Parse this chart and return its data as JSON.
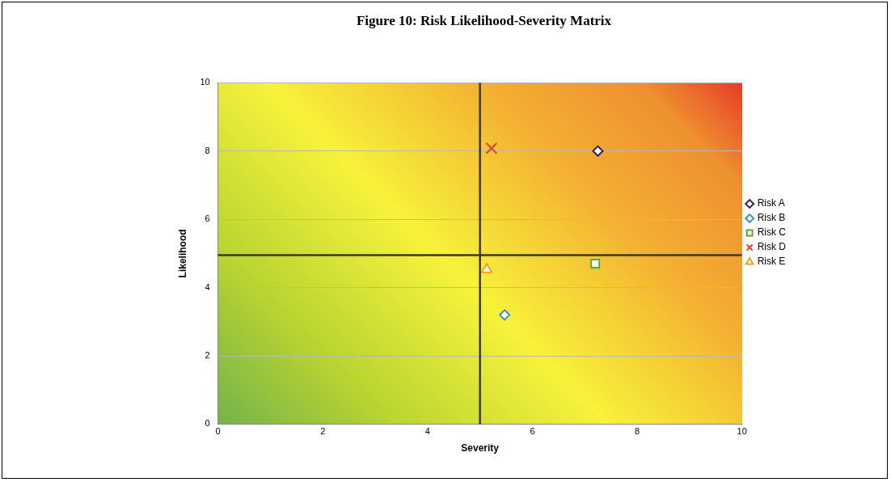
{
  "chart_data": {
    "type": "scatter",
    "title": "Figure 10: Risk Likelihood-Severity Matrix",
    "xlabel": "Severity",
    "ylabel": "Likelihood",
    "xlim": [
      0,
      10
    ],
    "xticks": [
      0,
      2,
      4,
      6,
      8,
      10
    ],
    "ylim": [
      0,
      10
    ],
    "yticks": [
      0,
      2,
      4,
      6,
      8,
      10
    ],
    "grid": "y",
    "legend": "right",
    "ref_lines": [
      {
        "axis": "x",
        "value": 5,
        "color": "#3a3a2a"
      },
      {
        "axis": "y",
        "value": 4.95,
        "color": "#3a3a2a"
      }
    ],
    "series": [
      {
        "name": "Risk A",
        "color": "#3b1f5c",
        "marker": "diamond",
        "x": [
          7.25
        ],
        "values": [
          8
        ]
      },
      {
        "name": "Risk B",
        "color": "#3d8fc2",
        "marker": "diamond",
        "x": [
          5.47
        ],
        "values": [
          3.2
        ]
      },
      {
        "name": "Risk C",
        "color": "#5aa83a",
        "marker": "square",
        "x": [
          7.2
        ],
        "values": [
          4.7
        ]
      },
      {
        "name": "Risk D",
        "color": "#e0402a",
        "marker": "cross",
        "x": [
          5.22
        ],
        "values": [
          8.08
        ]
      },
      {
        "name": "Risk E",
        "color": "#f0a030",
        "marker": "triangle",
        "x": [
          5.13
        ],
        "values": [
          4.53
        ]
      }
    ]
  }
}
